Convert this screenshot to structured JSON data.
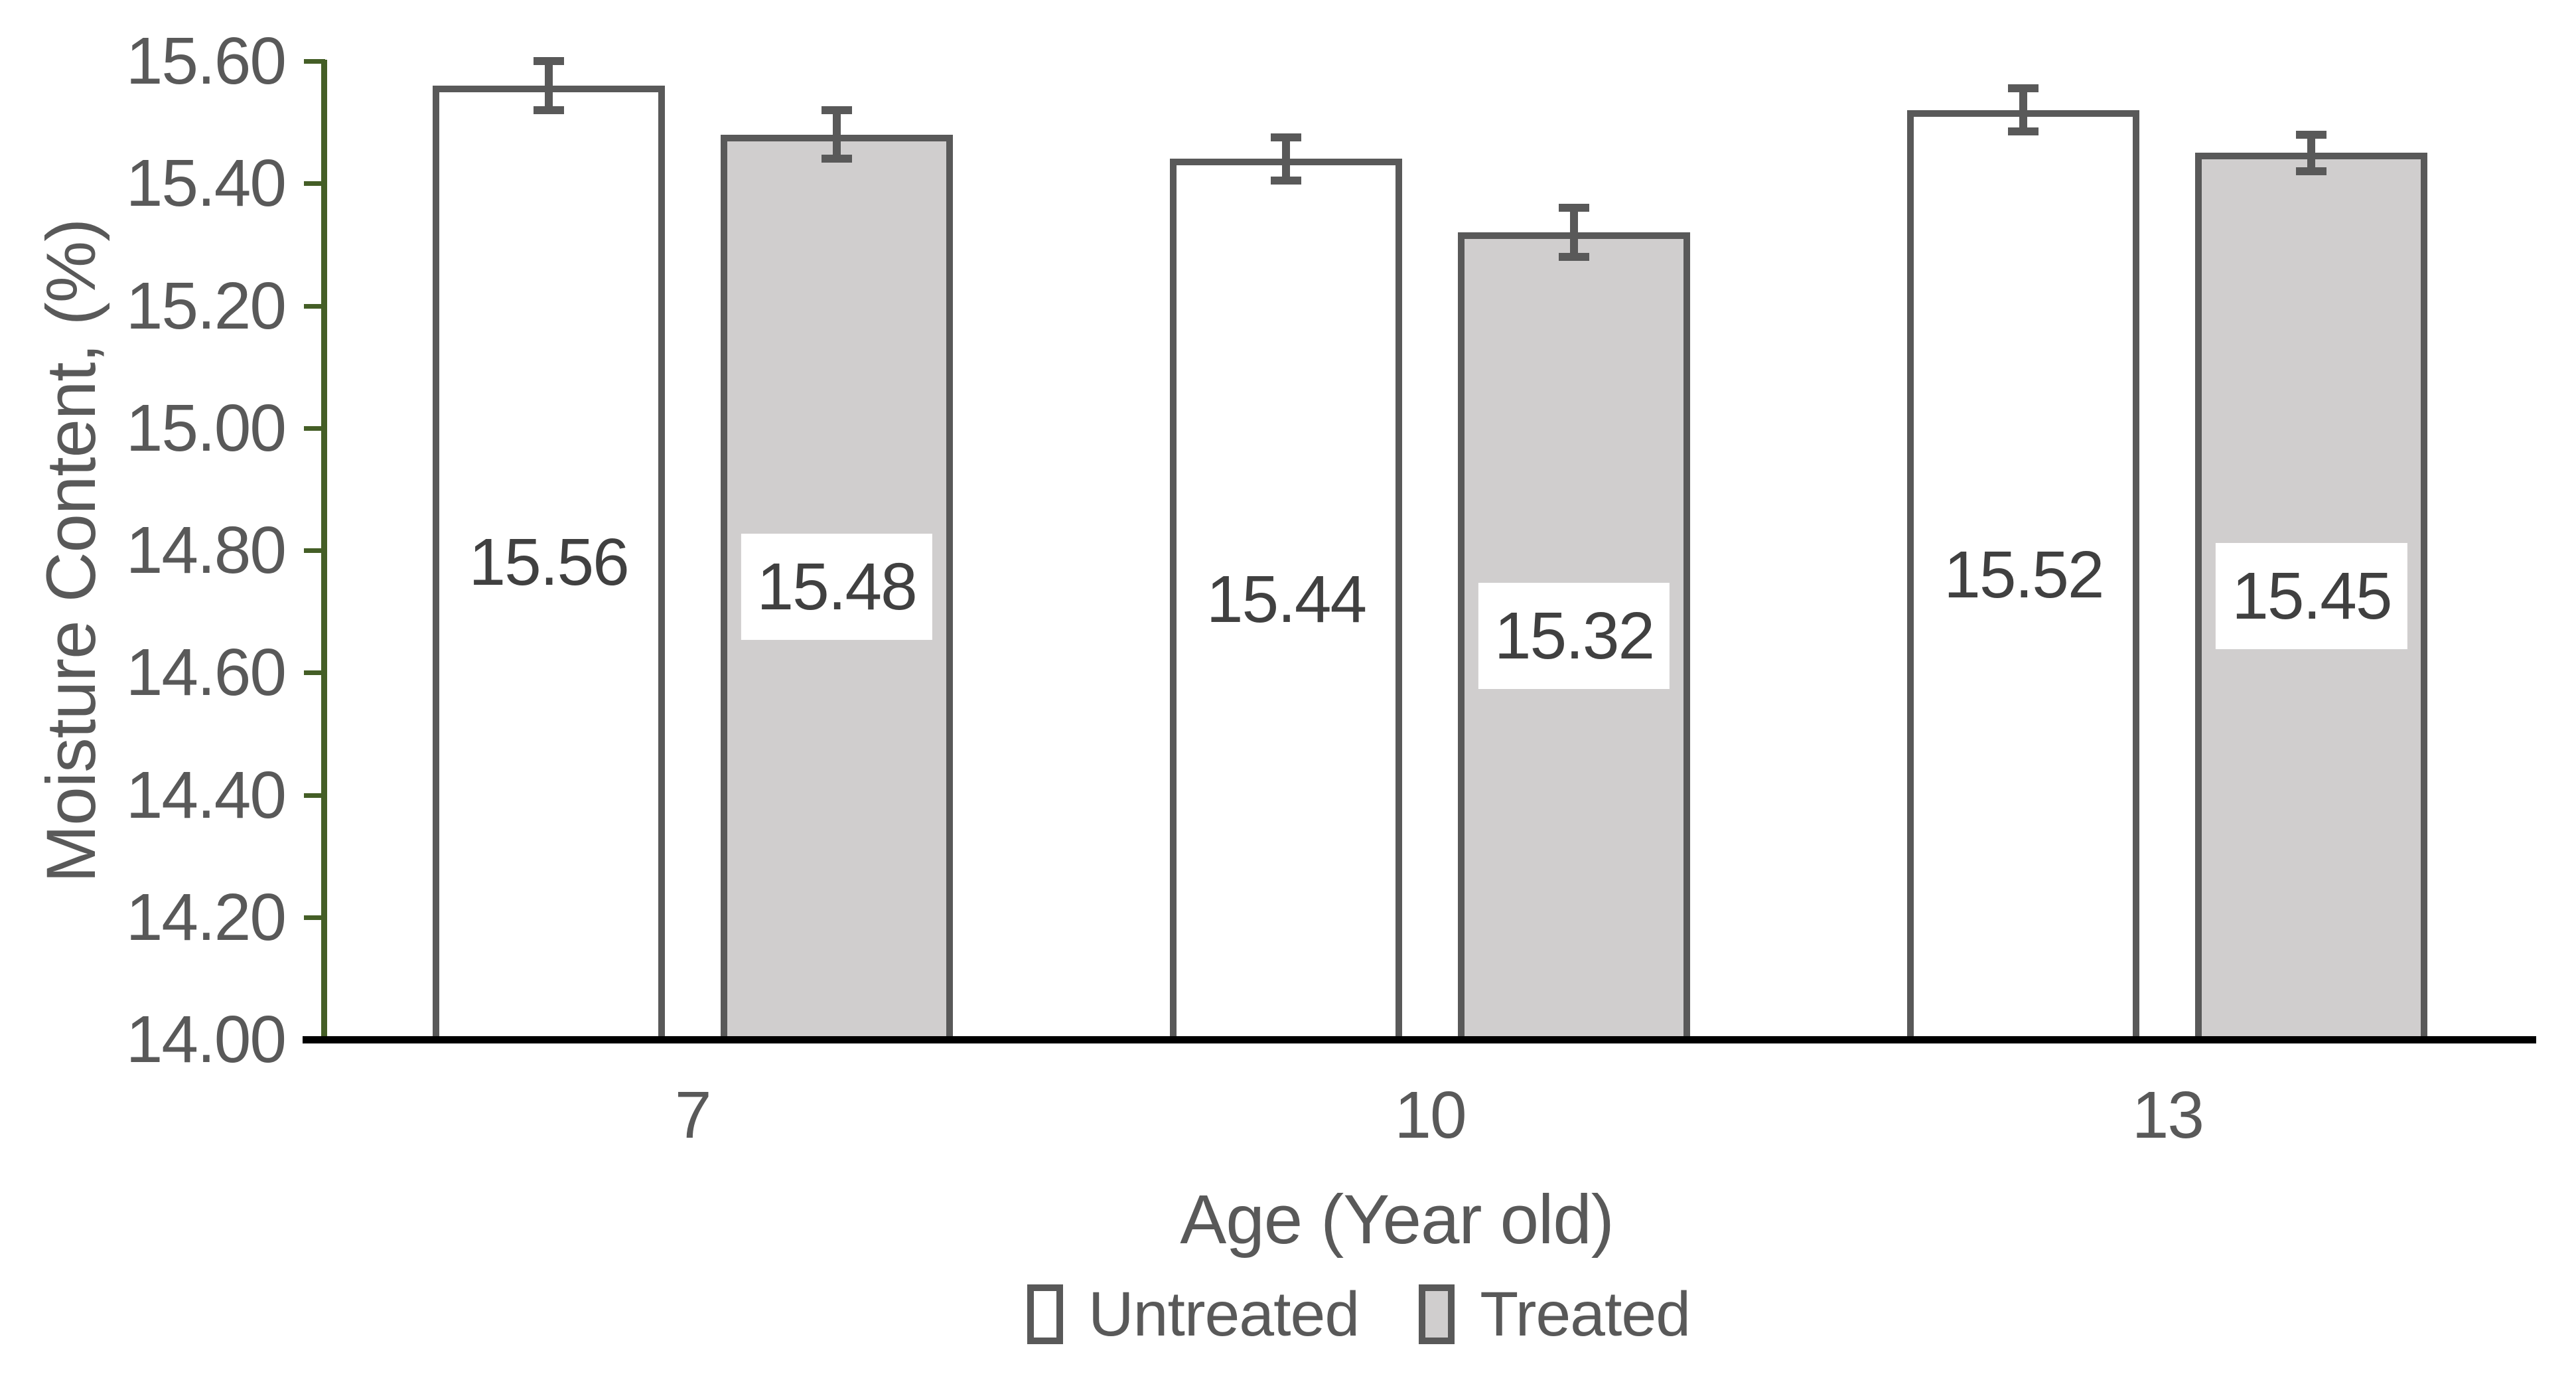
{
  "chart_data": {
    "type": "bar",
    "title": "",
    "categories": [
      "7",
      "10",
      "13"
    ],
    "series": [
      {
        "name": "Untreated",
        "values": [
          15.56,
          15.44,
          15.52
        ],
        "errors": [
          0.04,
          0.035,
          0.035
        ],
        "fill": "#ffffff",
        "label_boxed": false
      },
      {
        "name": "Treated",
        "values": [
          15.48,
          15.32,
          15.45
        ],
        "errors": [
          0.04,
          0.04,
          0.03
        ],
        "fill": "#d0cece",
        "label_boxed": true
      }
    ],
    "data_labels": {
      "Untreated": [
        "15.56",
        "15.44",
        "15.52"
      ],
      "Treated": [
        "15.48",
        "15.32",
        "15.45"
      ]
    },
    "xlabel": "Age (Year old)",
    "ylabel": "Moisture Content, (%)",
    "ylim": [
      14.0,
      15.6
    ],
    "ytick_step": 0.2,
    "ytick_labels": [
      "14.00",
      "14.20",
      "14.40",
      "14.60",
      "14.80",
      "15.00",
      "15.20",
      "15.40",
      "15.60"
    ],
    "legend": [
      "Untreated",
      "Treated"
    ],
    "legend_position": "bottom-center",
    "grid": false,
    "error_bars": true,
    "colors": {
      "y_axis": "#445e26",
      "x_axis": "#000000",
      "bar_border": "#595959",
      "error_bar": "#595959",
      "untreated_fill": "#ffffff",
      "treated_fill": "#d0cece",
      "tick_text": "#595959",
      "axis_title_text": "#595959",
      "data_label_text": "#404040",
      "data_label_box": "#ffffff",
      "legend_text": "#595959",
      "background": "#ffffff"
    }
  }
}
